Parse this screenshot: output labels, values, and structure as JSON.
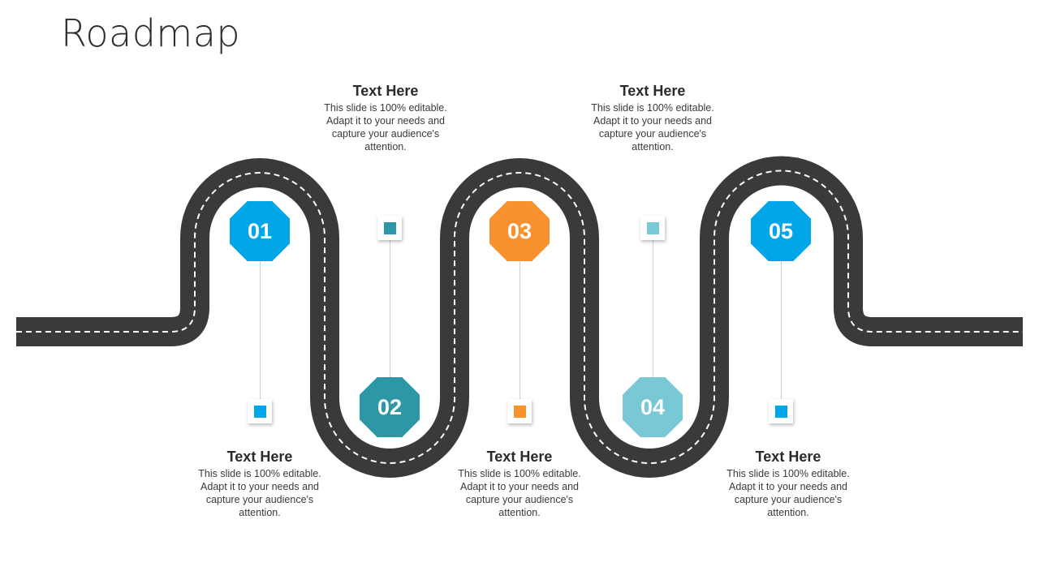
{
  "title": "Roadmap",
  "colors": {
    "road": "#3a3a3a",
    "road_dash": "#ffffff",
    "blue": "#00a6e8",
    "teal": "#2e97a5",
    "orange": "#f7922f",
    "light_teal": "#78c8d5"
  },
  "milestones": [
    {
      "number": "01",
      "color": "#00a6e8",
      "title": "Text Here",
      "body": "This slide is 100% editable. Adapt it to your needs and capture your audience's attention."
    },
    {
      "number": "02",
      "color": "#2e97a5",
      "title": "Text Here",
      "body": "This slide is 100% editable. Adapt it to your needs and capture your audience's attention."
    },
    {
      "number": "03",
      "color": "#f7922f",
      "title": "Text Here",
      "body": "This slide is 100% editable. Adapt it to your needs and capture your audience's attention."
    },
    {
      "number": "04",
      "color": "#78c8d5",
      "title": "Text Here",
      "body": "This slide is 100% editable. Adapt it to your needs and capture your audience's attention."
    },
    {
      "number": "05",
      "color": "#00a6e8",
      "title": "Text Here",
      "body": "This slide is 100% editable. Adapt it to your needs and capture your audience's attention."
    }
  ]
}
